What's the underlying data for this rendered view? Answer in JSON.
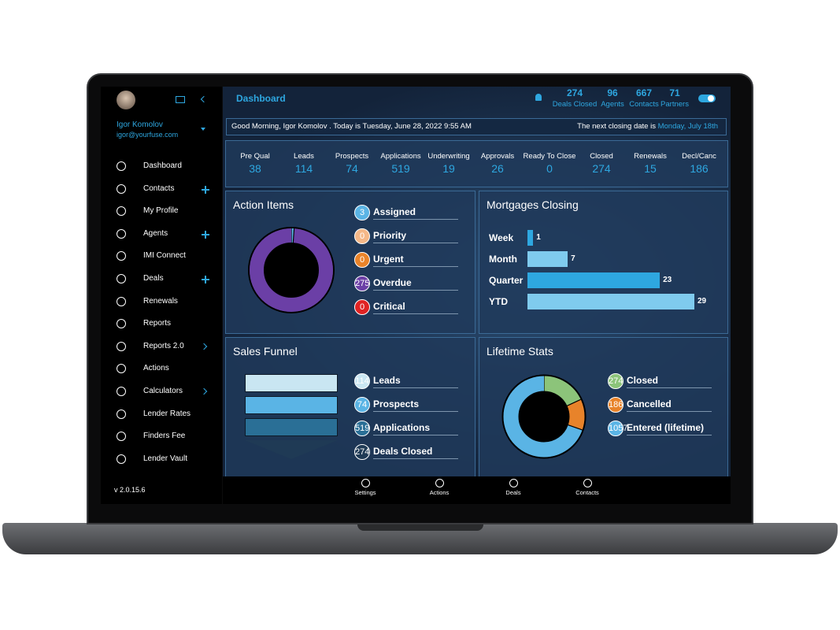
{
  "sidebar": {
    "user_name": "Igor Komolov",
    "user_email": "igor@yourfuse.com",
    "menu": [
      {
        "label": "Dashboard"
      },
      {
        "label": "Contacts",
        "extra": "plus"
      },
      {
        "label": "My Profile"
      },
      {
        "label": "Agents",
        "extra": "plus"
      },
      {
        "label": "IMI Connect"
      },
      {
        "label": "Deals",
        "extra": "plus"
      },
      {
        "label": "Renewals"
      },
      {
        "label": "Reports"
      },
      {
        "label": "Reports 2.0",
        "extra": "chevron"
      },
      {
        "label": "Actions"
      },
      {
        "label": "Calculators",
        "extra": "chevron"
      },
      {
        "label": "Lender Rates"
      },
      {
        "label": "Finders Fee"
      },
      {
        "label": "Lender Vault"
      }
    ],
    "version": "v 2.0.15.6"
  },
  "header": {
    "title": "Dashboard",
    "stats": [
      {
        "value": 274,
        "label": "Deals Closed"
      },
      {
        "value": 96,
        "label": "Agents"
      },
      {
        "value": 667,
        "label": "Contacts"
      },
      {
        "value": 71,
        "label": "Partners"
      }
    ]
  },
  "greeting": {
    "text": "Good Morning, Igor Komolov . Today is Tuesday, June 28, 2022 9:55 AM",
    "closing_label": "The next closing date is",
    "closing_date": "Monday, July 18th"
  },
  "pipeline": [
    {
      "label": "Pre Qual",
      "value": 38
    },
    {
      "label": "Leads",
      "value": 114
    },
    {
      "label": "Prospects",
      "value": 74
    },
    {
      "label": "Applications",
      "value": 519
    },
    {
      "label": "Underwriting",
      "value": 19
    },
    {
      "label": "Approvals",
      "value": 26
    },
    {
      "label": "Ready To Close",
      "value": 0
    },
    {
      "label": "Closed",
      "value": 274
    },
    {
      "label": "Renewals",
      "value": 15
    },
    {
      "label": "Decl/Canc",
      "value": 186
    }
  ],
  "action_items": {
    "title": "Action Items",
    "items": [
      {
        "label": "Assigned",
        "value": 3,
        "color": "#5ab4e5"
      },
      {
        "label": "Priority",
        "value": 0,
        "color": "#f5b888"
      },
      {
        "label": "Urgent",
        "value": 0,
        "color": "#e8832a"
      },
      {
        "label": "Overdue",
        "value": 275,
        "color": "#6b3fa6"
      },
      {
        "label": "Critical",
        "value": 0,
        "color": "#e02323"
      }
    ]
  },
  "mortgages_closing": {
    "title": "Mortgages Closing",
    "categories": [
      "Week",
      "Month",
      "Quarter",
      "YTD"
    ],
    "values": [
      1,
      7,
      23,
      29
    ],
    "colors": [
      "#2ea7e0",
      "#7fcbee",
      "#2ea7e0",
      "#7fcbee"
    ]
  },
  "sales_funnel": {
    "title": "Sales Funnel",
    "items": [
      {
        "label": "Leads",
        "value": 114,
        "color": "#c9e6f2"
      },
      {
        "label": "Prospects",
        "value": 74,
        "color": "#5ab4e5"
      },
      {
        "label": "Applications",
        "value": 519,
        "color": "#2a6f96"
      },
      {
        "label": "Deals Closed",
        "value": 274,
        "color": "#1f3a55"
      }
    ]
  },
  "lifetime_stats": {
    "title": "Lifetime Stats",
    "items": [
      {
        "label": "Closed",
        "value": 274,
        "color": "#8cc47a"
      },
      {
        "label": "Cancelled",
        "value": 186,
        "color": "#e8832a"
      },
      {
        "label": "Entered (lifetime)",
        "value": 1057,
        "color": "#5ab4e5"
      }
    ]
  },
  "bottom_nav": [
    "Settings",
    "Actions",
    "Deals",
    "Contacts"
  ]
}
